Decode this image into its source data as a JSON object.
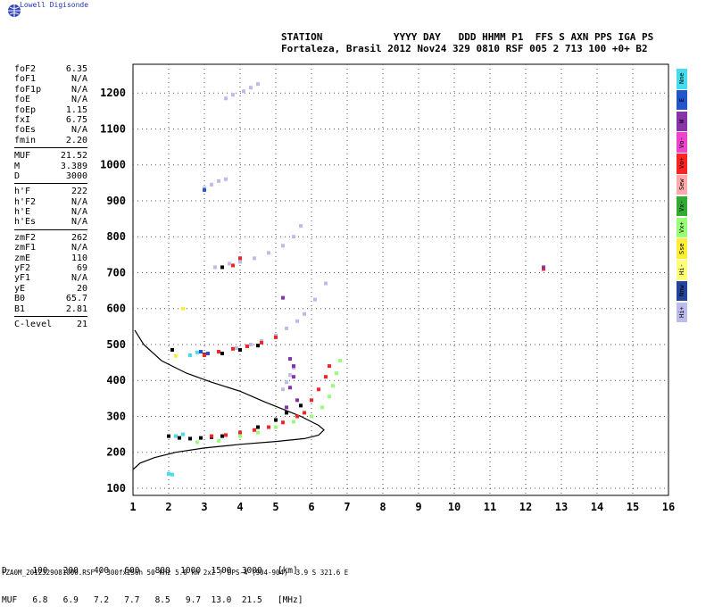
{
  "brand": "Lowell Digisonde",
  "header": {
    "line1": "STATION            YYYY DAY   DDD HHMM P1  FFS S AXN PPS IGA PS",
    "line2": "Fortaleza, Brasil 2012 Nov24 329 0810 RSF 005 2 713 100 +0+ B2"
  },
  "params": [
    {
      "label": "foF2",
      "value": "6.35"
    },
    {
      "label": "foF1",
      "value": "N/A"
    },
    {
      "label": "foF1p",
      "value": "N/A"
    },
    {
      "label": "foE",
      "value": "N/A"
    },
    {
      "label": "foEp",
      "value": "1.15"
    },
    {
      "label": "fxI",
      "value": "6.75"
    },
    {
      "label": "foEs",
      "value": "N/A"
    },
    {
      "label": "fmin",
      "value": "2.20"
    },
    {
      "sep": true
    },
    {
      "label": "MUF",
      "value": "21.52"
    },
    {
      "label": "M",
      "value": "3.389"
    },
    {
      "label": "D",
      "value": "3000"
    },
    {
      "sep": true
    },
    {
      "label": "h'F",
      "value": "222"
    },
    {
      "label": "h'F2",
      "value": "N/A"
    },
    {
      "label": "h'E",
      "value": "N/A"
    },
    {
      "label": "h'Es",
      "value": "N/A"
    },
    {
      "sep": true
    },
    {
      "label": "zmF2",
      "value": "262"
    },
    {
      "label": "zmF1",
      "value": "N/A"
    },
    {
      "label": "zmE",
      "value": "110"
    },
    {
      "label": "yF2",
      "value": "69"
    },
    {
      "label": "yF1",
      "value": "N/A"
    },
    {
      "label": "yE",
      "value": "20"
    },
    {
      "label": "B0",
      "value": "65.7"
    },
    {
      "label": "B1",
      "value": "2.81"
    },
    {
      "sep": true
    },
    {
      "label": "C-level",
      "value": "21"
    }
  ],
  "legend": [
    {
      "label": "Nne",
      "color": "#44ddee"
    },
    {
      "label": "E",
      "color": "#2255cc"
    },
    {
      "label": "W",
      "color": "#8833aa"
    },
    {
      "label": "Vo-",
      "color": "#ee44cc"
    },
    {
      "label": "Vo+",
      "color": "#ff2222"
    },
    {
      "label": "Sew",
      "color": "#ffaaaa"
    },
    {
      "label": "Vx-",
      "color": "#33aa33"
    },
    {
      "label": "Vx+",
      "color": "#99ff77"
    },
    {
      "label": "Sse",
      "color": "#ffee33"
    },
    {
      "label": "Hi-",
      "color": "#ffff77"
    },
    {
      "label": "Nnw",
      "color": "#224499"
    },
    {
      "label": "Hi+",
      "color": "#bbbbee"
    }
  ],
  "muf_table": {
    "row1": "D     100   200   400   600   800  1000  1500  3000   [km]",
    "row2": "MUF   6.8   6.9   7.2   7.7   8.5   9.7  13.0  21.5   [MHz]"
  },
  "footer": "FZA0M_2012329081000.RSF / 300fx256h 50 kHz 5.0 km 2x2 / DPS-4 (904-904)  3.9 S 321.6 E",
  "chart_data": {
    "type": "scatter",
    "xlim": [
      1,
      16
    ],
    "ylim": [
      80,
      1280
    ],
    "x_ticks": [
      1,
      2,
      3,
      4,
      5,
      6,
      7,
      8,
      9,
      10,
      11,
      12,
      13,
      14,
      15,
      16
    ],
    "y_ticks": [
      100,
      200,
      300,
      400,
      500,
      600,
      700,
      800,
      900,
      1000,
      1100,
      1200
    ],
    "grid": true,
    "series": [
      {
        "color": "#bbbbee",
        "points": [
          [
            3.6,
            1185
          ],
          [
            3.8,
            1195
          ],
          [
            4.1,
            1205
          ],
          [
            4.3,
            1215
          ],
          [
            4.5,
            1225
          ],
          [
            3.0,
            935
          ],
          [
            3.2,
            945
          ],
          [
            3.4,
            955
          ],
          [
            3.6,
            960
          ],
          [
            3.3,
            715
          ],
          [
            3.7,
            725
          ],
          [
            4.0,
            730
          ],
          [
            4.4,
            740
          ],
          [
            4.8,
            755
          ],
          [
            5.2,
            775
          ],
          [
            5.5,
            800
          ],
          [
            5.7,
            830
          ],
          [
            3.9,
            490
          ],
          [
            4.3,
            500
          ],
          [
            4.6,
            510
          ],
          [
            5.0,
            525
          ],
          [
            5.3,
            545
          ],
          [
            5.6,
            565
          ],
          [
            5.8,
            585
          ],
          [
            6.1,
            625
          ],
          [
            6.4,
            670
          ],
          [
            5.4,
            415
          ],
          [
            5.5,
            435
          ],
          [
            5.3,
            395
          ],
          [
            5.2,
            375
          ]
        ]
      },
      {
        "color": "#000000",
        "points": [
          [
            2.0,
            245
          ],
          [
            2.3,
            240
          ],
          [
            2.6,
            238
          ],
          [
            2.9,
            240
          ],
          [
            3.2,
            242
          ],
          [
            3.5,
            245
          ],
          [
            4.0,
            255
          ],
          [
            4.5,
            270
          ],
          [
            5.0,
            290
          ],
          [
            5.3,
            310
          ],
          [
            5.7,
            330
          ],
          [
            2.6,
            470
          ],
          [
            3.0,
            472
          ],
          [
            3.5,
            475
          ],
          [
            4.0,
            485
          ],
          [
            4.5,
            497
          ],
          [
            3.5,
            715
          ],
          [
            2.1,
            485
          ]
        ]
      },
      {
        "color": "#ff2222",
        "points": [
          [
            3.0,
            470
          ],
          [
            3.4,
            480
          ],
          [
            3.8,
            488
          ],
          [
            4.2,
            495
          ],
          [
            4.6,
            505
          ],
          [
            5.0,
            520
          ],
          [
            3.2,
            245
          ],
          [
            3.6,
            248
          ],
          [
            4.0,
            255
          ],
          [
            4.4,
            262
          ],
          [
            4.8,
            270
          ],
          [
            5.2,
            283
          ],
          [
            5.6,
            300
          ],
          [
            5.8,
            310
          ],
          [
            6.0,
            345
          ],
          [
            6.2,
            375
          ],
          [
            6.4,
            410
          ],
          [
            6.5,
            440
          ],
          [
            4.0,
            740
          ],
          [
            3.8,
            720
          ],
          [
            12.5,
            710
          ]
        ]
      },
      {
        "color": "#99ff77",
        "points": [
          [
            4.0,
            245
          ],
          [
            4.5,
            255
          ],
          [
            5.0,
            270
          ],
          [
            5.5,
            285
          ],
          [
            6.0,
            300
          ],
          [
            6.3,
            325
          ],
          [
            6.5,
            355
          ],
          [
            6.6,
            385
          ],
          [
            6.7,
            420
          ],
          [
            6.8,
            455
          ],
          [
            2.8,
            228
          ],
          [
            3.4,
            232
          ]
        ]
      },
      {
        "color": "#8833aa",
        "points": [
          [
            5.4,
            380
          ],
          [
            5.5,
            410
          ],
          [
            5.5,
            440
          ],
          [
            5.4,
            460
          ],
          [
            5.3,
            325
          ],
          [
            5.6,
            345
          ],
          [
            5.2,
            630
          ],
          [
            12.5,
            715
          ]
        ]
      },
      {
        "color": "#44ddee",
        "points": [
          [
            2.0,
            140
          ],
          [
            2.1,
            138
          ],
          [
            2.2,
            245
          ],
          [
            2.4,
            250
          ],
          [
            2.6,
            470
          ],
          [
            2.8,
            478
          ]
        ]
      },
      {
        "color": "#2255cc",
        "points": [
          [
            2.9,
            480
          ],
          [
            3.1,
            475
          ],
          [
            3.0,
            930
          ]
        ]
      },
      {
        "color": "#ffee33",
        "points": [
          [
            2.4,
            600
          ],
          [
            2.2,
            468
          ]
        ]
      }
    ],
    "profile": [
      [
        1.05,
        540
      ],
      [
        1.3,
        500
      ],
      [
        1.8,
        455
      ],
      [
        2.5,
        420
      ],
      [
        3.2,
        395
      ],
      [
        4.0,
        370
      ],
      [
        4.7,
        340
      ],
      [
        5.2,
        320
      ],
      [
        5.7,
        300
      ],
      [
        6.0,
        285
      ],
      [
        6.2,
        275
      ],
      [
        6.35,
        262
      ],
      [
        6.2,
        248
      ],
      [
        5.8,
        238
      ],
      [
        5.0,
        230
      ],
      [
        4.0,
        222
      ],
      [
        3.0,
        212
      ],
      [
        2.2,
        200
      ],
      [
        1.6,
        185
      ],
      [
        1.2,
        170
      ],
      [
        1.0,
        152
      ]
    ]
  }
}
